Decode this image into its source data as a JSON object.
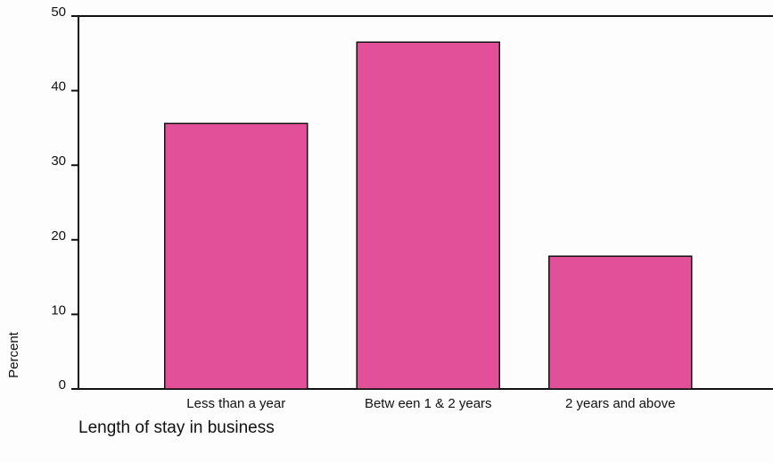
{
  "chart_data": {
    "type": "bar",
    "x_label": "Length of stay in business",
    "y_label": "Percent",
    "categories": [
      "Less than a year",
      "Betw een 1 & 2 years",
      "2 years and above"
    ],
    "values": [
      35.6,
      46.5,
      17.8
    ],
    "color": "#e2509a",
    "ylim": [
      0,
      50
    ],
    "yticks": [
      0,
      10,
      20,
      30,
      40,
      50
    ],
    "grid": false
  }
}
